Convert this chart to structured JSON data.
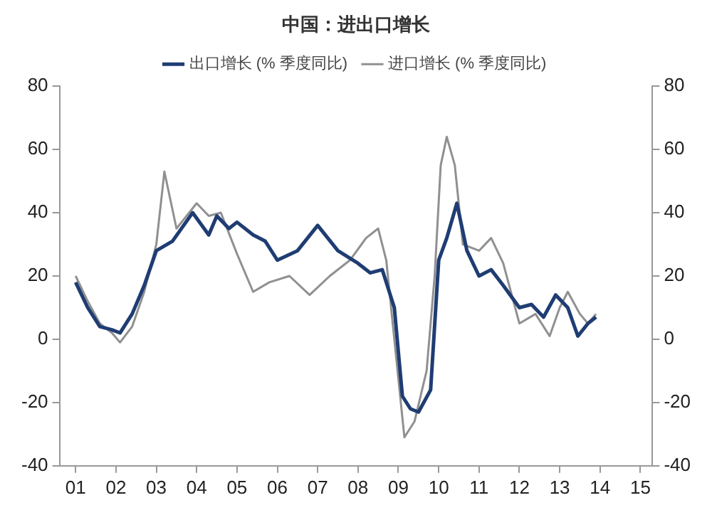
{
  "chart_data": {
    "type": "line",
    "title": "中国：进出口增长",
    "xlim": [
      2000.6,
      2015.3
    ],
    "xticks": [
      {
        "value": 2001,
        "label": "01"
      },
      {
        "value": 2002,
        "label": "02"
      },
      {
        "value": 2003,
        "label": "03"
      },
      {
        "value": 2004,
        "label": "04"
      },
      {
        "value": 2005,
        "label": "05"
      },
      {
        "value": 2006,
        "label": "06"
      },
      {
        "value": 2007,
        "label": "07"
      },
      {
        "value": 2008,
        "label": "08"
      },
      {
        "value": 2009,
        "label": "09"
      },
      {
        "value": 2010,
        "label": "10"
      },
      {
        "value": 2011,
        "label": "11"
      },
      {
        "value": 2012,
        "label": "12"
      },
      {
        "value": 2013,
        "label": "13"
      },
      {
        "value": 2014,
        "label": "14"
      },
      {
        "value": 2015,
        "label": "15"
      }
    ],
    "ylim": [
      -40,
      80
    ],
    "yticks": [
      -40,
      -20,
      0,
      20,
      40,
      60,
      80
    ],
    "y2lim": [
      -40,
      80
    ],
    "y2ticks": [
      -40,
      -20,
      0,
      20,
      40,
      60,
      80
    ],
    "grid": false,
    "legend": "top",
    "marker": "none",
    "line_style": "solid",
    "series": [
      {
        "name": "出口增长 (% 季度同比)",
        "color": "#1f3d73",
        "x": [
          2001.0,
          2001.3,
          2001.6,
          2001.9,
          2002.1,
          2002.4,
          2002.7,
          2003.0,
          2003.4,
          2003.9,
          2004.3,
          2004.5,
          2004.8,
          2005.0,
          2005.4,
          2005.7,
          2006.0,
          2006.5,
          2007.0,
          2007.5,
          2008.0,
          2008.3,
          2008.6,
          2008.9,
          2009.1,
          2009.3,
          2009.5,
          2009.8,
          2010.0,
          2010.2,
          2010.45,
          2010.7,
          2011.0,
          2011.3,
          2011.6,
          2012.0,
          2012.3,
          2012.6,
          2012.9,
          2013.2,
          2013.45,
          2013.7,
          2013.9
        ],
        "values": [
          18,
          10,
          4,
          3,
          2,
          8,
          17,
          28,
          31,
          40,
          33,
          39,
          35,
          37,
          33,
          31,
          25,
          28,
          36,
          28,
          24,
          21,
          22,
          10,
          -18,
          -22,
          -23,
          -16,
          25,
          32,
          43,
          28,
          20,
          22,
          17,
          10,
          11,
          7,
          14,
          10,
          1,
          5,
          7
        ]
      },
      {
        "name": "进口增长 (% 季度同比)",
        "color": "#909090",
        "x": [
          2001.0,
          2001.3,
          2001.6,
          2001.9,
          2002.1,
          2002.4,
          2002.7,
          2003.0,
          2003.2,
          2003.5,
          2004.0,
          2004.3,
          2004.6,
          2005.0,
          2005.4,
          2005.8,
          2006.3,
          2006.8,
          2007.3,
          2007.8,
          2008.2,
          2008.5,
          2008.7,
          2008.9,
          2009.15,
          2009.4,
          2009.7,
          2009.9,
          2010.05,
          2010.2,
          2010.4,
          2010.6,
          2011.0,
          2011.3,
          2011.6,
          2012.0,
          2012.4,
          2012.75,
          2013.0,
          2013.2,
          2013.5,
          2013.7,
          2013.9
        ],
        "values": [
          20,
          12,
          5,
          2,
          -1,
          4,
          15,
          30,
          53,
          35,
          43,
          39,
          40,
          27,
          15,
          18,
          20,
          14,
          20,
          25,
          32,
          35,
          25,
          0,
          -31,
          -26,
          -10,
          20,
          55,
          64,
          55,
          30,
          28,
          32,
          24,
          5,
          8,
          1,
          10,
          15,
          8,
          5,
          8
        ]
      }
    ]
  }
}
